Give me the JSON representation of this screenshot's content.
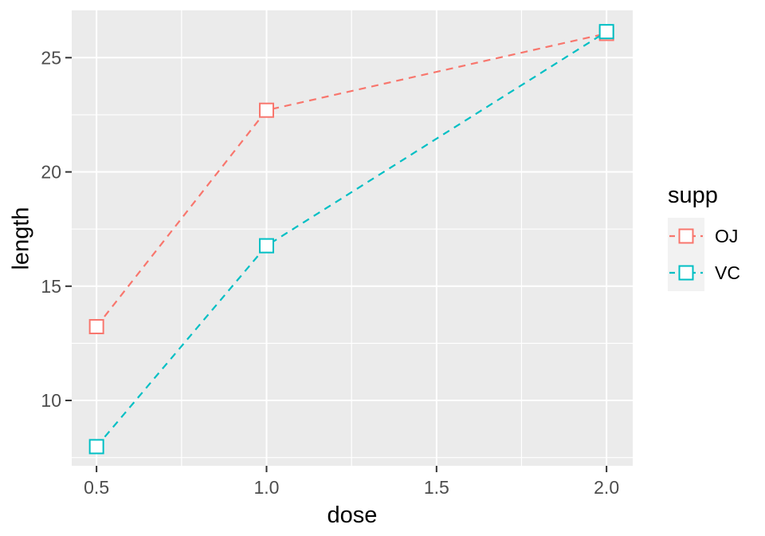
{
  "chart_data": {
    "type": "line",
    "title": "",
    "xlabel": "dose",
    "ylabel": "length",
    "x": [
      0.5,
      1.0,
      2.0
    ],
    "series": [
      {
        "name": "OJ",
        "color": "#F8766D",
        "values": [
          13.23,
          22.7,
          26.06
        ]
      },
      {
        "name": "VC",
        "color": "#00BFC4",
        "values": [
          7.98,
          16.77,
          26.14
        ]
      }
    ],
    "line_style": "dashed",
    "marker": "open-square",
    "x_ticks": [
      0.5,
      1.0,
      1.5,
      2.0
    ],
    "x_tick_labels": [
      "0.5",
      "1.0",
      "1.5",
      "2.0"
    ],
    "y_ticks": [
      10,
      15,
      20,
      25
    ],
    "y_tick_labels": [
      "10",
      "15",
      "20",
      "25"
    ],
    "x_minor": [
      0.75,
      1.25,
      1.75
    ],
    "y_minor": [
      7.5,
      12.5,
      17.5,
      22.5
    ],
    "x_range": [
      0.427,
      2.077
    ],
    "y_range": [
      7.14,
      27.07
    ],
    "grid": "on",
    "colors": {
      "panel_bg": "#EBEBEB",
      "grid": "#FFFFFF",
      "tick": "#333333",
      "tick_label": "#4D4D4D",
      "axis_title": "#000000",
      "legend_key_bg": "#F2F2F2"
    },
    "legend": {
      "title": "supp",
      "position": "right",
      "entries": [
        {
          "label": "OJ",
          "color": "#F8766D"
        },
        {
          "label": "VC",
          "color": "#00BFC4"
        }
      ]
    }
  }
}
